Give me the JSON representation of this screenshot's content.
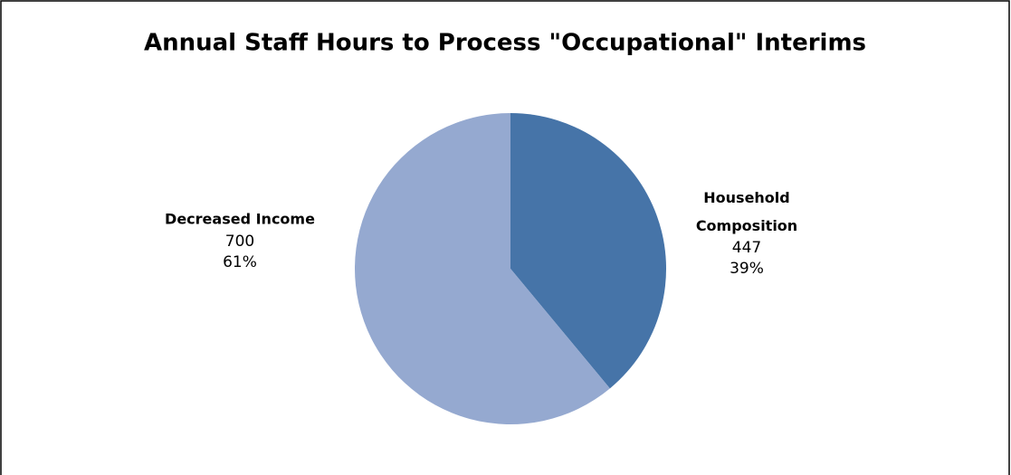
{
  "chart_data": {
    "type": "pie",
    "title": "Annual Staff Hours to Process \"Occupational\" Interims",
    "categories": [
      "Household Composition",
      "Decreased Income"
    ],
    "values": [
      447,
      700
    ],
    "percent_labels": [
      "39%",
      "61%"
    ],
    "colors": [
      "#4674a8",
      "#95a9d0"
    ]
  }
}
